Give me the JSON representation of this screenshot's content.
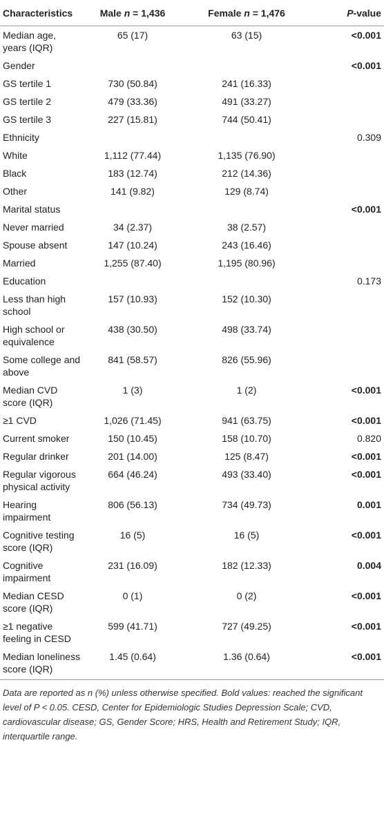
{
  "table": {
    "header": [
      {
        "parts": [
          "Characteristics"
        ]
      },
      {
        "parts": [
          "Male ",
          "n",
          " = 1,436"
        ],
        "italic_parts": [
          1
        ]
      },
      {
        "parts": [
          "Female ",
          "n",
          " = 1,476"
        ],
        "italic_parts": [
          1
        ]
      },
      {
        "parts": [
          "P",
          "-value"
        ],
        "italic_parts": [
          0
        ]
      }
    ],
    "rows": [
      {
        "cells": [
          "Median age, years (IQR)",
          "65 (17)",
          "63 (15)",
          "<0.001"
        ],
        "bold_p": true
      },
      {
        "cells": [
          "Gender",
          null,
          null,
          "<0.001"
        ],
        "bold_p": true
      },
      {
        "cells": [
          "GS tertile 1",
          "730 (50.84)",
          "241 (16.33)",
          null
        ]
      },
      {
        "cells": [
          "GS tertile 2",
          "479 (33.36)",
          "491 (33.27)",
          null
        ]
      },
      {
        "cells": [
          "GS tertile 3",
          "227 (15.81)",
          "744 (50.41)",
          null
        ]
      },
      {
        "cells": [
          "Ethnicity",
          null,
          null,
          "0.309"
        ]
      },
      {
        "cells": [
          "White",
          "1,112 (77.44)",
          "1,135 (76.90)",
          null
        ]
      },
      {
        "cells": [
          "Black",
          "183 (12.74)",
          "212 (14.36)",
          null
        ]
      },
      {
        "cells": [
          "Other",
          "141 (9.82)",
          "129 (8.74)",
          null
        ]
      },
      {
        "cells": [
          "Marital status",
          null,
          null,
          "<0.001"
        ],
        "bold_p": true
      },
      {
        "cells": [
          "Never married",
          "34 (2.37)",
          "38 (2.57)",
          null
        ]
      },
      {
        "cells": [
          "Spouse absent",
          "147 (10.24)",
          "243 (16.46)",
          null
        ]
      },
      {
        "cells": [
          "Married",
          "1,255 (87.40)",
          "1,195 (80.96)",
          null
        ]
      },
      {
        "cells": [
          "Education",
          null,
          null,
          "0.173"
        ]
      },
      {
        "cells": [
          "Less than high school",
          "157 (10.93)",
          "152 (10.30)",
          null
        ]
      },
      {
        "cells": [
          "High school or equivalence",
          "438 (30.50)",
          "498 (33.74)",
          null
        ]
      },
      {
        "cells": [
          "Some college and above",
          "841 (58.57)",
          "826 (55.96)",
          null
        ]
      },
      {
        "cells": [
          "Median CVD score (IQR)",
          "1 (3)",
          "1 (2)",
          "<0.001"
        ],
        "bold_p": true
      },
      {
        "cells": [
          "≥1 CVD",
          "1,026 (71.45)",
          "941 (63.75)",
          "<0.001"
        ],
        "bold_p": true
      },
      {
        "cells": [
          "Current smoker",
          "150 (10.45)",
          "158 (10.70)",
          "0.820"
        ]
      },
      {
        "cells": [
          "Regular drinker",
          "201 (14.00)",
          "125 (8.47)",
          "<0.001"
        ],
        "bold_p": true
      },
      {
        "cells": [
          "Regular vigorous physical activity",
          "664 (46.24)",
          "493 (33.40)",
          "<0.001"
        ],
        "bold_p": true
      },
      {
        "cells": [
          "Hearing impairment",
          "806 (56.13)",
          "734 (49.73)",
          "0.001"
        ],
        "bold_p": true
      },
      {
        "cells": [
          "Cognitive testing score (IQR)",
          "16 (5)",
          "16 (5)",
          "<0.001"
        ],
        "bold_p": true
      },
      {
        "cells": [
          "Cognitive impairment",
          "231 (16.09)",
          "182 (12.33)",
          "0.004"
        ],
        "bold_p": true
      },
      {
        "cells": [
          "Median CESD score (IQR)",
          "0 (1)",
          "0 (2)",
          "<0.001"
        ],
        "bold_p": true
      },
      {
        "cells": [
          "≥1 negative feeling in CESD",
          "599 (41.71)",
          "727 (49.25)",
          "<0.001"
        ],
        "bold_p": true
      },
      {
        "cells": [
          "Median loneliness score (IQR)",
          "1.45 (0.64)",
          "1.36 (0.64)",
          "<0.001"
        ],
        "bold_p": true
      }
    ]
  },
  "footnote": "Data are reported as n (%) unless otherwise specified. Bold values: reached the significant level of P < 0.05. CESD, Center for Epidemiologic Studies Depression Scale; CVD, cardiovascular disease; GS, Gender Score; HRS, Health and Retirement Study; IQR, interquartile range."
}
